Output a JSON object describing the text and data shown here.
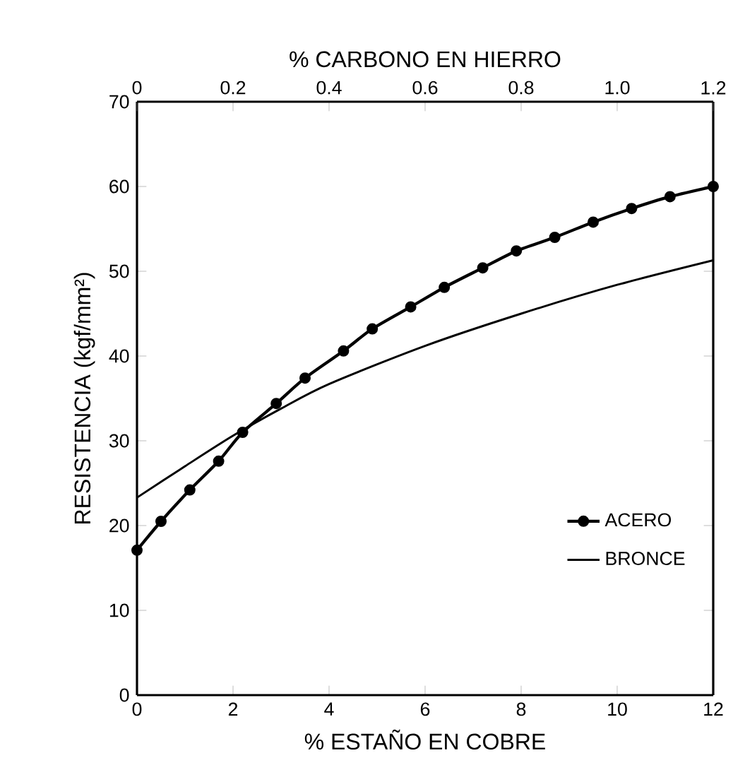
{
  "chart_data": {
    "type": "line",
    "xlabel": "% ESTAÑO EN COBRE",
    "x2label": "% CARBONO EN HIERRO",
    "ylabel": "RESISTENCIA (kgf/mm²)",
    "xlim": [
      0,
      12
    ],
    "xticks": [
      0,
      2,
      4,
      6,
      8,
      10,
      12
    ],
    "x2lim": [
      0,
      1.2
    ],
    "x2ticks": [
      0,
      0.2,
      0.4,
      0.6,
      0.8,
      {
        "value": 1.0,
        "label": "1.0"
      },
      1.2
    ],
    "ylim": [
      0,
      70
    ],
    "yticks": [
      0,
      10,
      20,
      30,
      40,
      50,
      60,
      70
    ],
    "legend": "bottom right",
    "line_style": "solid",
    "series": [
      {
        "name": "ACERO",
        "color": "#000000",
        "axis": "x2",
        "marker": "circle",
        "x": [
          0,
          0.05,
          0.11,
          0.17,
          0.22,
          0.29,
          0.35,
          0.43,
          0.49,
          0.57,
          0.64,
          0.72,
          0.79,
          0.87,
          0.95,
          1.03,
          1.11,
          1.2
        ],
        "values": [
          17.1,
          20.5,
          24.2,
          27.6,
          31.0,
          34.4,
          37.4,
          40.6,
          43.2,
          45.8,
          48.1,
          50.4,
          52.4,
          54.0,
          55.8,
          57.4,
          58.8,
          60.0
        ]
      },
      {
        "name": "BRONCE",
        "color": "#000000",
        "marker": "none",
        "x": [
          0,
          1,
          2,
          3,
          4,
          6,
          8,
          10,
          12
        ],
        "values": [
          23.3,
          27.0,
          30.6,
          33.8,
          36.7,
          41.2,
          45.0,
          48.4,
          51.3
        ]
      }
    ]
  }
}
